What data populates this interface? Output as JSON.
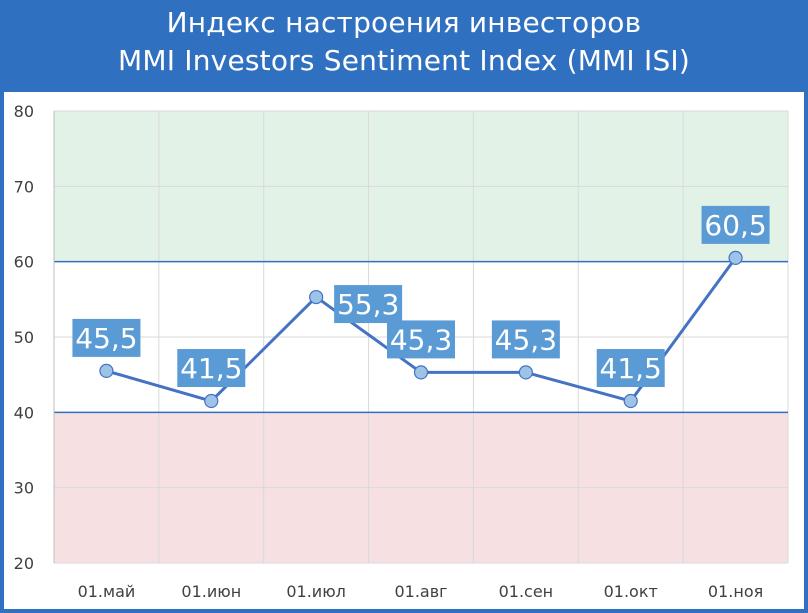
{
  "title": {
    "line1": "Индекс настроения инвесторов",
    "line2": "MMI Investors Sentiment Index (MMI ISI)"
  },
  "colors": {
    "frame": "#2f70c1",
    "line": "#4472c4",
    "marker_fill": "#9dc3e6",
    "label_bg": "#5b9bd5",
    "zone_high": "#e2f2e6",
    "zone_low": "#f6e0e2",
    "threshold_line": "#2f70c1"
  },
  "chart_data": {
    "type": "line",
    "categories": [
      "01.май",
      "01.июн",
      "01.июл",
      "01.авг",
      "01.сен",
      "01.окт",
      "01.ноя"
    ],
    "series": [
      {
        "values": [
          45.5,
          41.5,
          55.3,
          45.3,
          45.3,
          41.5,
          60.5
        ]
      }
    ],
    "data_labels": [
      "45,5",
      "41,5",
      "55,3",
      "45,3",
      "45,3",
      "41,5",
      "60,5"
    ],
    "ylim": [
      20,
      80
    ],
    "yticks": [
      20,
      30,
      40,
      50,
      60,
      70,
      80
    ],
    "bands": [
      {
        "from": 60,
        "to": 80,
        "color": "#e2f2e6"
      },
      {
        "from": 20,
        "to": 40,
        "color": "#f6e0e2"
      }
    ],
    "threshold_lines": [
      40,
      60
    ],
    "grid": true,
    "legend": "none"
  }
}
